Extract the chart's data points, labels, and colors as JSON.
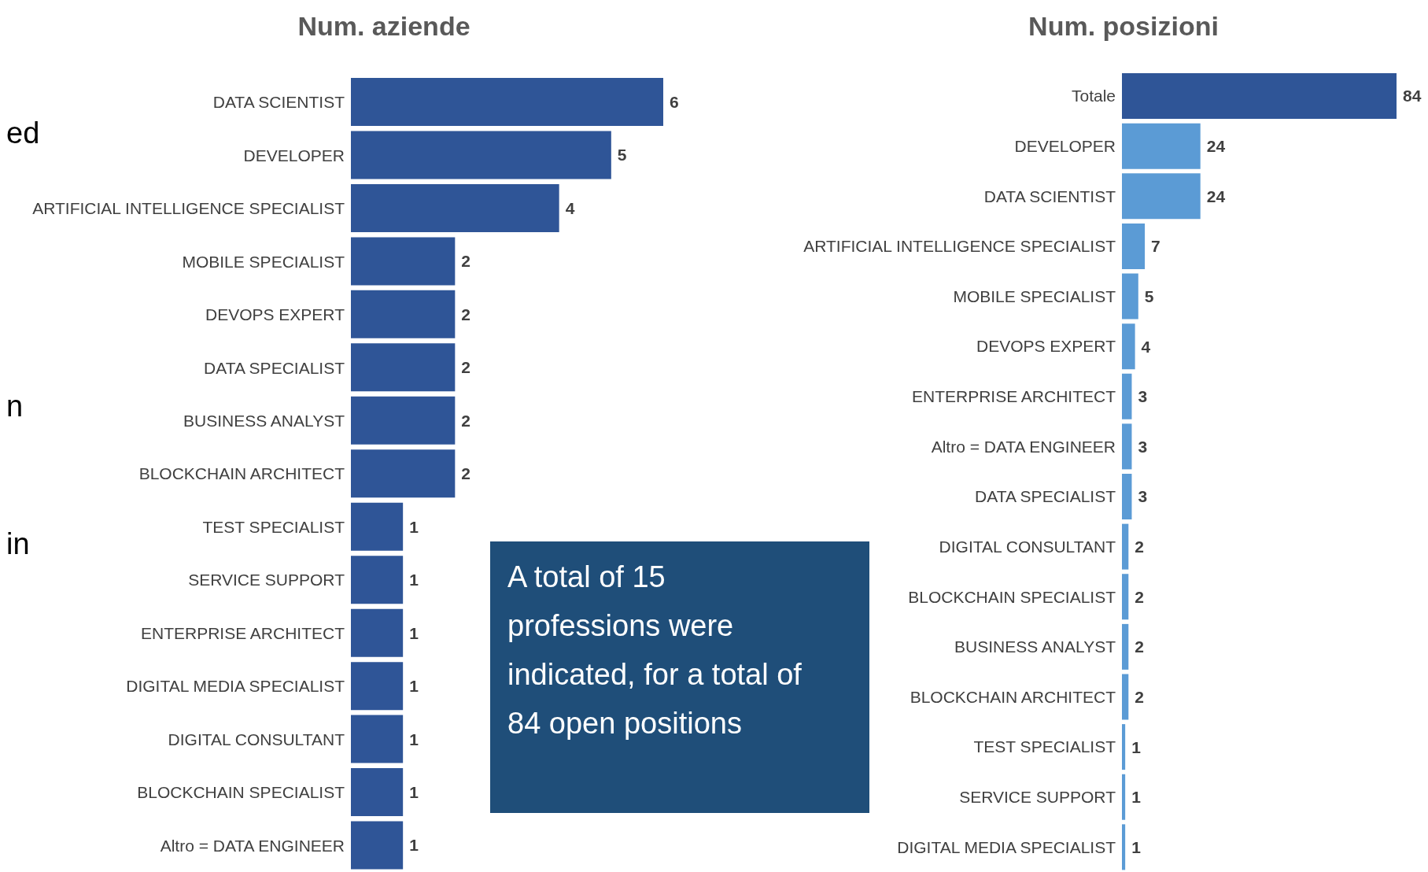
{
  "chart_data": [
    {
      "type": "bar",
      "orientation": "horizontal",
      "title": "Num. aziende",
      "categories": [
        "DATA SCIENTIST",
        "DEVELOPER",
        "ARTIFICIAL INTELLIGENCE SPECIALIST",
        "MOBILE SPECIALIST",
        "DEVOPS EXPERT",
        "DATA SPECIALIST",
        "BUSINESS ANALYST",
        "BLOCKCHAIN ARCHITECT",
        "TEST SPECIALIST",
        "SERVICE SUPPORT",
        "ENTERPRISE ARCHITECT",
        "DIGITAL MEDIA SPECIALIST",
        "DIGITAL CONSULTANT",
        "BLOCKCHAIN SPECIALIST",
        "Altro = DATA ENGINEER"
      ],
      "values": [
        6,
        5,
        4,
        2,
        2,
        2,
        2,
        2,
        1,
        1,
        1,
        1,
        1,
        1,
        1
      ],
      "color": "#2f5597",
      "data_labels": true,
      "annotations": [
        "ed",
        "n",
        "in",
        "A total of 15 professions were indicated, for a total of 84 open positions"
      ]
    },
    {
      "type": "bar",
      "orientation": "horizontal",
      "title": "Num. posizioni",
      "categories": [
        "Totale",
        "DEVELOPER",
        "DATA SCIENTIST",
        "ARTIFICIAL INTELLIGENCE SPECIALIST",
        "MOBILE SPECIALIST",
        "DEVOPS EXPERT",
        "ENTERPRISE ARCHITECT",
        "Altro = DATA ENGINEER",
        "DATA SPECIALIST",
        "DIGITAL CONSULTANT",
        "BLOCKCHAIN SPECIALIST",
        "BUSINESS ANALYST",
        "BLOCKCHAIN ARCHITECT",
        "TEST SPECIALIST",
        "SERVICE SUPPORT",
        "DIGITAL MEDIA SPECIALIST"
      ],
      "values": [
        84,
        24,
        24,
        7,
        5,
        4,
        3,
        3,
        3,
        2,
        2,
        2,
        2,
        1,
        1,
        1
      ],
      "colors": [
        "#2f5597",
        "#5b9bd5",
        "#5b9bd5",
        "#5b9bd5",
        "#5b9bd5",
        "#5b9bd5",
        "#5b9bd5",
        "#5b9bd5",
        "#5b9bd5",
        "#5b9bd5",
        "#5b9bd5",
        "#5b9bd5",
        "#5b9bd5",
        "#5b9bd5",
        "#5b9bd5",
        "#5b9bd5"
      ],
      "data_labels": true
    }
  ]
}
